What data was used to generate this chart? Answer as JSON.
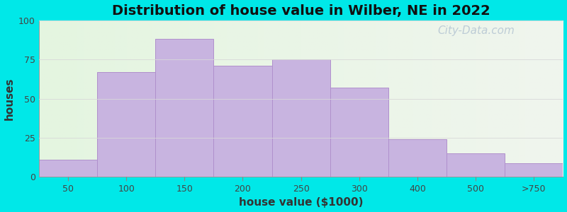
{
  "title": "Distribution of house value in Wilber, NE in 2022",
  "xlabel": "house value ($1000)",
  "ylabel": "houses",
  "bar_labels": [
    "50",
    "100",
    "150",
    "200",
    "250",
    "300",
    "400",
    "500",
    ">750"
  ],
  "bar_values": [
    11,
    67,
    88,
    71,
    75,
    57,
    24,
    15,
    9
  ],
  "bar_color": "#c8b4e0",
  "bar_edgecolor": "#b090cc",
  "ylim": [
    0,
    100
  ],
  "yticks": [
    0,
    25,
    50,
    75,
    100
  ],
  "background_outer": "#00e8e8",
  "bg_color_left": "#e4f5e0",
  "bg_color_right": "#f0f5ee",
  "title_fontsize": 14,
  "axis_label_fontsize": 11,
  "tick_fontsize": 9,
  "watermark_text": "City-Data.com",
  "watermark_color": "#b8c8d4",
  "watermark_fontsize": 11
}
